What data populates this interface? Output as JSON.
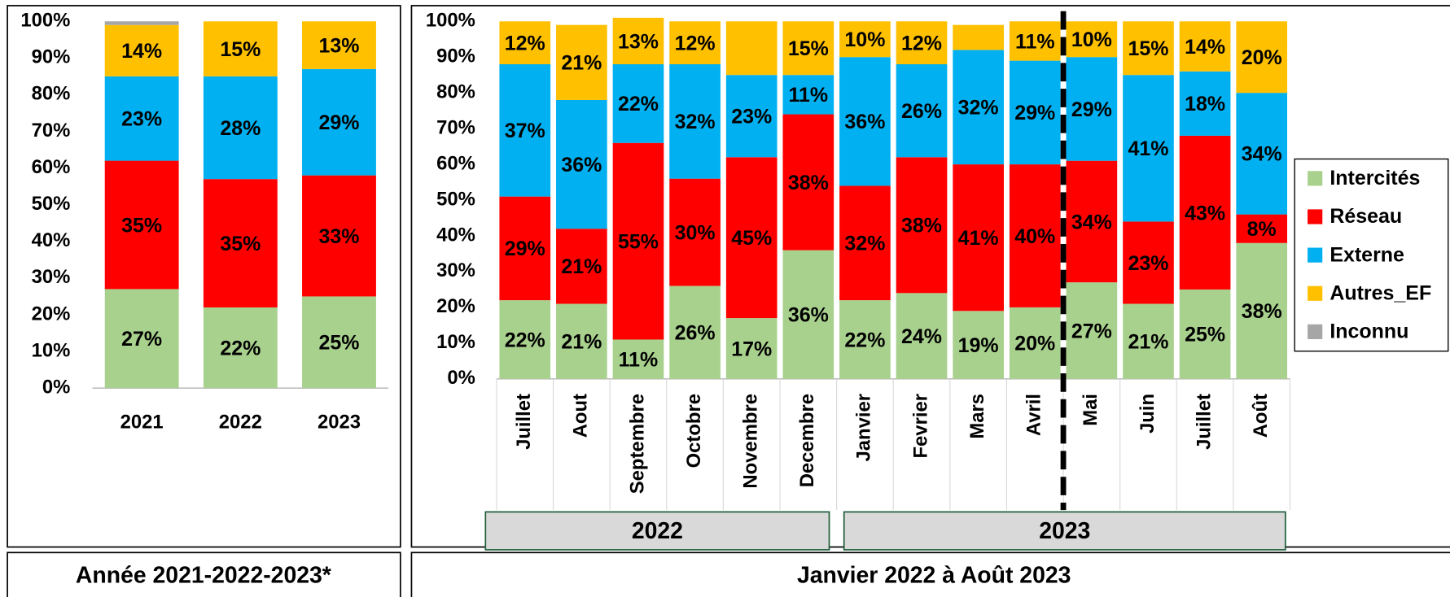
{
  "chart_data": [
    {
      "type": "stacked_bar",
      "xlabel": "Année 2021-2022-2023*",
      "categories": [
        "2021",
        "2022",
        "2023"
      ],
      "ylim": [
        0,
        100
      ],
      "yticks": [
        {
          "value": 0,
          "label": "0%"
        },
        {
          "value": 10,
          "label": "10%"
        },
        {
          "value": 20,
          "label": "20%"
        },
        {
          "value": 30,
          "label": "30%"
        },
        {
          "value": 40,
          "label": "40%"
        },
        {
          "value": 50,
          "label": "50%"
        },
        {
          "value": 60,
          "label": "60%"
        },
        {
          "value": 70,
          "label": "70%"
        },
        {
          "value": 80,
          "label": "80%"
        },
        {
          "value": 90,
          "label": "90%"
        },
        {
          "value": 100,
          "label": "100%"
        }
      ],
      "series": [
        {
          "color": "#a9d18e",
          "values": [
            27,
            22,
            25
          ],
          "value_labels": [
            "27%",
            "22%",
            "25%"
          ]
        },
        {
          "color": "#ff0000",
          "values": [
            35,
            35,
            33
          ],
          "value_labels": [
            "35%",
            "35%",
            "33%"
          ]
        },
        {
          "color": "#00b0f0",
          "values": [
            23,
            28,
            29
          ],
          "value_labels": [
            "23%",
            "28%",
            "29%"
          ]
        },
        {
          "color": "#ffc000",
          "values": [
            14,
            15,
            13
          ],
          "value_labels": [
            "14%",
            "15%",
            "13%"
          ]
        },
        {
          "color": "#a6a6a6",
          "values": [
            1,
            0,
            0
          ],
          "value_labels": [
            null,
            null,
            null
          ]
        }
      ]
    },
    {
      "type": "stacked_bar",
      "xlabel": "Janvier 2022 à Août 2023",
      "groups": [
        {
          "label": "2022",
          "categories": [
            "Juillet",
            "Aout",
            "Septembre",
            "Octobre",
            "Novembre",
            "Decembre"
          ]
        },
        {
          "label": "2023",
          "categories": [
            "Janvier",
            "Fevrier",
            "Mars",
            "Avril",
            "Mai",
            "Juin",
            "Juillet",
            "Août"
          ]
        }
      ],
      "ylim": [
        0,
        100
      ],
      "yticks": [
        {
          "value": 0,
          "label": "0%"
        },
        {
          "value": 10,
          "label": "10%"
        },
        {
          "value": 20,
          "label": "20%"
        },
        {
          "value": 30,
          "label": "30%"
        },
        {
          "value": 40,
          "label": "40%"
        },
        {
          "value": 50,
          "label": "50%"
        },
        {
          "value": 60,
          "label": "60%"
        },
        {
          "value": 70,
          "label": "70%"
        },
        {
          "value": 80,
          "label": "80%"
        },
        {
          "value": 90,
          "label": "90%"
        },
        {
          "value": 100,
          "label": "100%"
        }
      ],
      "legend": "right",
      "series": [
        {
          "name": "Intercités",
          "color": "#a9d18e",
          "values": [
            22,
            21,
            11,
            26,
            17,
            36,
            22,
            24,
            19,
            20,
            27,
            21,
            25,
            38
          ],
          "value_labels": [
            "22%",
            "21%",
            "11%",
            "26%",
            "17%",
            "36%",
            "22%",
            "24%",
            "19%",
            "20%",
            "27%",
            "21%",
            "25%",
            "38%"
          ]
        },
        {
          "name": "Réseau",
          "color": "#ff0000",
          "values": [
            29,
            21,
            55,
            30,
            45,
            38,
            32,
            38,
            41,
            40,
            34,
            23,
            43,
            8
          ],
          "value_labels": [
            "29%",
            "21%",
            "55%",
            "30%",
            "45%",
            "38%",
            "32%",
            "38%",
            "41%",
            "40%",
            "34%",
            "23%",
            "43%",
            "8%"
          ]
        },
        {
          "name": "Externe",
          "color": "#00b0f0",
          "values": [
            37,
            36,
            22,
            32,
            23,
            11,
            36,
            26,
            32,
            29,
            29,
            41,
            18,
            34
          ],
          "value_labels": [
            "37%",
            "36%",
            "22%",
            "32%",
            "23%",
            "11%",
            "36%",
            "26%",
            "32%",
            "29%",
            "29%",
            "41%",
            "18%",
            "34%"
          ]
        },
        {
          "name": "Autres_EF",
          "color": "#ffc000",
          "values": [
            12,
            21,
            13,
            12,
            15,
            15,
            10,
            12,
            7,
            11,
            10,
            15,
            14,
            20
          ],
          "value_labels": [
            "12%",
            "21%",
            "13%",
            "12%",
            null,
            "15%",
            "10%",
            "12%",
            null,
            "11%",
            "10%",
            "15%",
            "14%",
            "20%"
          ]
        },
        {
          "name": "Inconnu",
          "color": "#a6a6a6",
          "values": [
            0,
            0,
            0,
            0,
            0,
            0,
            0,
            0,
            0,
            0,
            0,
            0,
            0,
            0
          ],
          "value_labels": [
            null,
            null,
            null,
            null,
            null,
            null,
            null,
            null,
            null,
            null,
            null,
            null,
            null,
            null
          ]
        }
      ]
    }
  ]
}
